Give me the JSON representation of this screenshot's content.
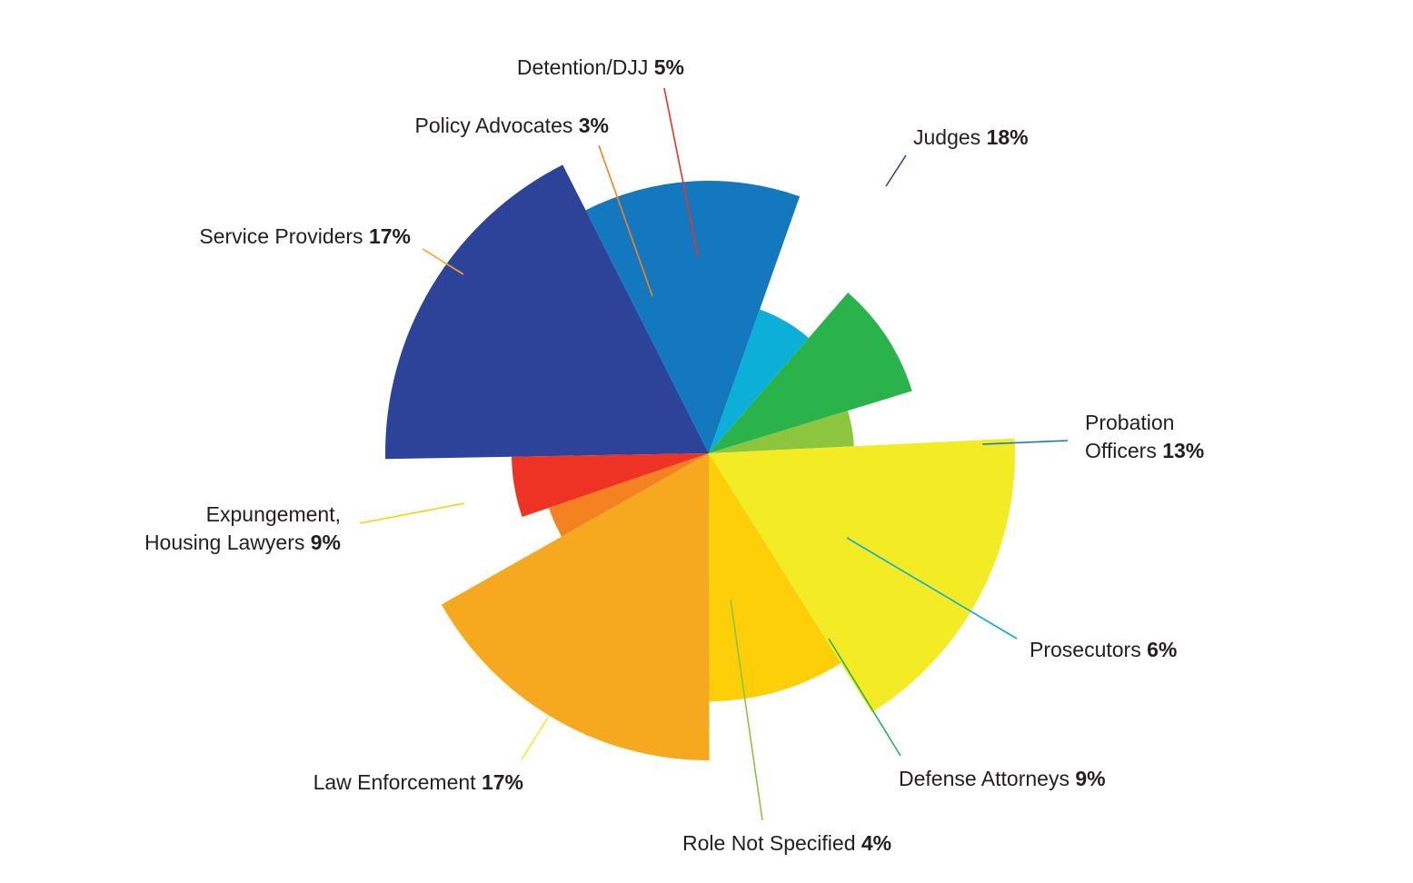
{
  "chart_data": {
    "type": "pie",
    "variant": "variable-radius polar pie",
    "title": "",
    "unit": "%",
    "legend": "none",
    "slices": [
      {
        "label": "Judges",
        "value": 18,
        "display": "18%",
        "color": "#2c4399"
      },
      {
        "label": "Probation Officers",
        "label_lines": [
          "Probation",
          "Officers"
        ],
        "value": 13,
        "display": "13%",
        "color": "#1478bf"
      },
      {
        "label": "Prosecutors",
        "value": 6,
        "display": "6%",
        "color": "#0bafd8"
      },
      {
        "label": "Defense Attorneys",
        "value": 9,
        "display": "9%",
        "color": "#2ab34b"
      },
      {
        "label": "Role Not Specified",
        "value": 4,
        "display": "4%",
        "color": "#8cc63f"
      },
      {
        "label": "Law Enforcement",
        "value": 17,
        "display": "17%",
        "color": "#f3ec24"
      },
      {
        "label": "Expungement, Housing Lawyers",
        "label_lines": [
          "Expungement,",
          "Housing Lawyers"
        ],
        "value": 9,
        "display": "9%",
        "color": "#fdcf09"
      },
      {
        "label": "Service Providers",
        "value": 17,
        "display": "17%",
        "color": "#f6a81e"
      },
      {
        "label": "Policy Advocates",
        "value": 3,
        "display": "3%",
        "color": "#f48221"
      },
      {
        "label": "Detention/DJJ",
        "value": 5,
        "display": "5%",
        "color": "#ee3224"
      }
    ]
  }
}
